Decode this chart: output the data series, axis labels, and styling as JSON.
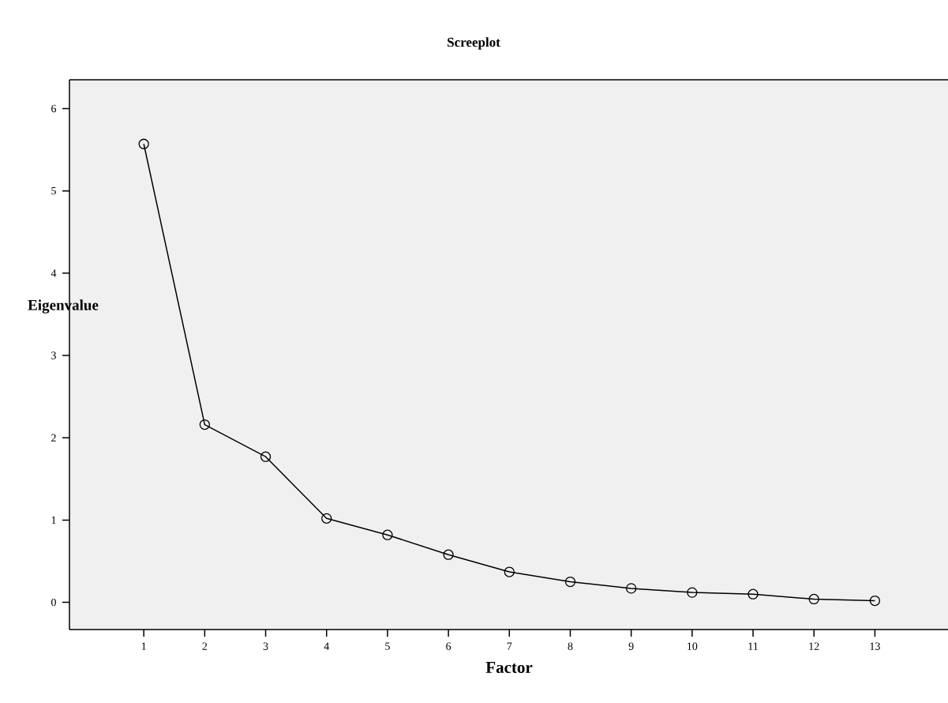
{
  "chart_data": {
    "type": "line",
    "title": "Screeplot",
    "xlabel": "Factor",
    "ylabel": "Eigenvalue",
    "x": [
      1,
      2,
      3,
      4,
      5,
      6,
      7,
      8,
      9,
      10,
      11,
      12,
      13
    ],
    "values": [
      5.57,
      2.16,
      1.77,
      1.02,
      0.82,
      0.58,
      0.37,
      0.25,
      0.17,
      0.12,
      0.1,
      0.04,
      0.02
    ],
    "color": "#000000",
    "marker": "circle",
    "xlim": [
      -0.22,
      14.2
    ],
    "ylim": [
      -0.33,
      6.35
    ],
    "xticks": [
      1,
      2,
      3,
      4,
      5,
      6,
      7,
      8,
      9,
      10,
      11,
      12,
      13
    ],
    "yticks": [
      0,
      1,
      2,
      3,
      4,
      5,
      6
    ]
  }
}
